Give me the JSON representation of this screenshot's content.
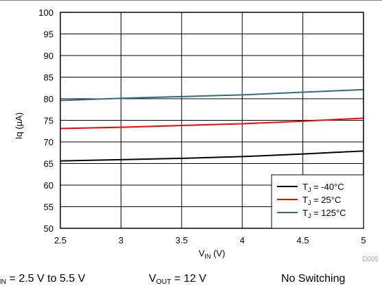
{
  "chart_data": {
    "type": "line",
    "xlabel": {
      "main": "V",
      "sub": "IN",
      "unit": " (V)"
    },
    "ylabel": "Iq (µA)",
    "xlim": [
      2.5,
      5
    ],
    "ylim": [
      50,
      100
    ],
    "xticks": [
      "2.5",
      "3",
      "3.5",
      "4",
      "4.5",
      "5"
    ],
    "yticks": [
      "50",
      "55",
      "60",
      "65",
      "70",
      "75",
      "80",
      "85",
      "90",
      "95",
      "100"
    ],
    "grid": true,
    "legend_position": "bottom-right",
    "series": [
      {
        "name": "T_J = -40°C",
        "label_main": "T",
        "label_sub": "J",
        "label_rest": " = -40°C",
        "color": "#000000",
        "x": [
          2.5,
          3,
          3.5,
          4,
          4.5,
          5
        ],
        "y": [
          65.6,
          65.9,
          66.2,
          66.6,
          67.2,
          67.9
        ]
      },
      {
        "name": "T_J = 25°C",
        "label_main": "T",
        "label_sub": "J",
        "label_rest": " = 25°C",
        "color": "#ff0000",
        "x": [
          2.5,
          3,
          3.5,
          4,
          4.5,
          5
        ],
        "y": [
          73.1,
          73.4,
          73.8,
          74.2,
          74.8,
          75.5
        ]
      },
      {
        "name": "T_J = 125°C",
        "label_main": "T",
        "label_sub": "J",
        "label_rest": " = 125°C",
        "color": "#2e6a82",
        "x": [
          2.5,
          3,
          3.5,
          4,
          4.5,
          5
        ],
        "y": [
          79.6,
          80.1,
          80.5,
          80.9,
          81.5,
          82.1
        ]
      }
    ],
    "code": "D005"
  },
  "conditions": {
    "vin": {
      "main": "V",
      "sub": "IN",
      "rest": " = 2.5 V to 5.5 V"
    },
    "vout": {
      "main": "V",
      "sub": "OUT",
      "rest": " = 12 V"
    },
    "switching": "No Switching"
  }
}
